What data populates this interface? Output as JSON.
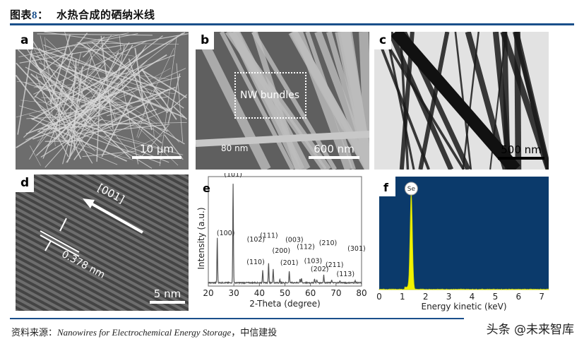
{
  "header": {
    "figure_label": "图表",
    "figure_number": "8",
    "separator": "：",
    "title": "水热合成的硒纳米线"
  },
  "panels": {
    "a": {
      "label": "a",
      "scale_bar": "10 µm"
    },
    "b": {
      "label": "b",
      "scale_bar": "600 nm",
      "annotation_box": "NW bundles",
      "dimension": "80 nm"
    },
    "c": {
      "label": "c",
      "scale_bar": "500 nm"
    },
    "d": {
      "label": "d",
      "scale_bar": "5 nm",
      "direction": "[001]",
      "spacing": "0.378 nm"
    },
    "e": {
      "label": "e"
    },
    "f": {
      "label": "f"
    }
  },
  "chart_data": [
    {
      "panel": "e",
      "type": "line",
      "xlabel": "2-Theta (degree)",
      "ylabel": "Intensity (a.u.)",
      "xlim": [
        20,
        80
      ],
      "xticks": [
        20,
        30,
        40,
        50,
        60,
        70,
        80
      ],
      "grid": false,
      "color": "#555555",
      "peaks": [
        {
          "x": 23.5,
          "y": 0.45,
          "label": "(100)"
        },
        {
          "x": 29.7,
          "y": 1.0,
          "label": "(101)"
        },
        {
          "x": 41.3,
          "y": 0.13,
          "label": "(110)"
        },
        {
          "x": 43.6,
          "y": 0.2,
          "label": "(102)"
        },
        {
          "x": 45.4,
          "y": 0.14,
          "label": "(111)"
        },
        {
          "x": 48.0,
          "y": 0.03,
          "label": "(200)"
        },
        {
          "x": 51.7,
          "y": 0.12,
          "label": "(201)"
        },
        {
          "x": 55.9,
          "y": 0.04,
          "label": "(003)"
        },
        {
          "x": 56.5,
          "y": 0.04,
          "label": "(112)"
        },
        {
          "x": 61.6,
          "y": 0.04,
          "label": "(103)"
        },
        {
          "x": 62.5,
          "y": 0.03,
          "label": "(202)"
        },
        {
          "x": 65.2,
          "y": 0.08,
          "label": "(210)"
        },
        {
          "x": 68.3,
          "y": 0.03,
          "label": "(211)"
        },
        {
          "x": 71.5,
          "y": 0.02,
          "label": "(113)"
        },
        {
          "x": 77.5,
          "y": 0.02,
          "label": "(301)"
        }
      ]
    },
    {
      "panel": "f",
      "type": "area",
      "xlabel": "Energy kinetic (keV)",
      "xlim": [
        0,
        7.3
      ],
      "xticks": [
        0,
        1,
        2,
        3,
        4,
        5,
        6,
        7
      ],
      "background": "#0b3a6b",
      "fill": "#f2f200",
      "grid": false,
      "peaks": [
        {
          "x": 1.38,
          "y": 0.85,
          "label": "Se"
        }
      ]
    }
  ],
  "footer": {
    "source_prefix": "资料来源：",
    "source_text": "Nanowires for Electrochemical Energy Storage",
    "source_suffix": "，中信建投",
    "watermark": "头条 @未来智库"
  },
  "colors": {
    "accent": "#1a4f8b"
  }
}
